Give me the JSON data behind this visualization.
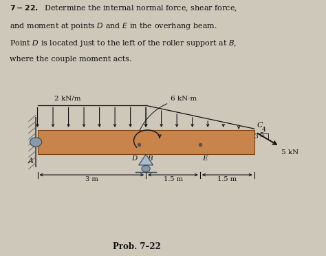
{
  "bg_color": "#cec8ba",
  "beam_face": "#c8844a",
  "beam_edge": "#7a4010",
  "text_color": "#111111",
  "prob_label": "Prob. 7–22",
  "label_2kNm": "2 kN/m",
  "label_6kNm": "6 kN·m",
  "label_5kN": "5 kN",
  "dim_3m": "3 m",
  "dim_15m_1": "1.5 m",
  "dim_15m_2": "1.5 m",
  "point_A": "A",
  "point_D": "D",
  "point_B": "B",
  "point_E": "E",
  "point_C": "C",
  "tri_3": "3",
  "tri_4": "4",
  "tri_5": "5",
  "bx0": 0.115,
  "bx1": 0.78,
  "by": 0.445,
  "bh": 0.048,
  "beam_total_m": 6.0,
  "B_dist_m": 3.0,
  "E_dist_m": 4.5
}
